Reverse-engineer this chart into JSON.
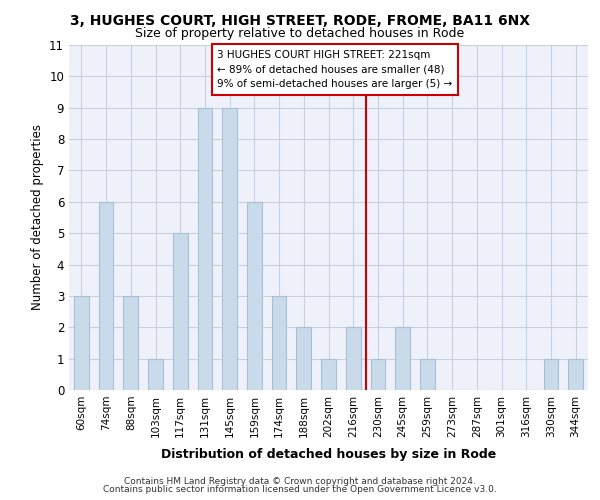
{
  "title1": "3, HUGHES COURT, HIGH STREET, RODE, FROME, BA11 6NX",
  "title2": "Size of property relative to detached houses in Rode",
  "xlabel": "Distribution of detached houses by size in Rode",
  "ylabel": "Number of detached properties",
  "categories": [
    "60sqm",
    "74sqm",
    "88sqm",
    "103sqm",
    "117sqm",
    "131sqm",
    "145sqm",
    "159sqm",
    "174sqm",
    "188sqm",
    "202sqm",
    "216sqm",
    "230sqm",
    "245sqm",
    "259sqm",
    "273sqm",
    "287sqm",
    "301sqm",
    "316sqm",
    "330sqm",
    "344sqm"
  ],
  "values": [
    3,
    6,
    3,
    1,
    5,
    9,
    9,
    6,
    3,
    2,
    1,
    2,
    1,
    2,
    1,
    0,
    0,
    0,
    0,
    1,
    1
  ],
  "bar_color": "#c9daea",
  "bar_edge_color": "#a8c0d6",
  "grid_color": "#c8cfe0",
  "background_color": "#eef1f9",
  "ref_line_index": 11.5,
  "annotation_text": "3 HUGHES COURT HIGH STREET: 221sqm\n← 89% of detached houses are smaller (48)\n9% of semi-detached houses are larger (5) →",
  "footer1": "Contains HM Land Registry data © Crown copyright and database right 2024.",
  "footer2": "Contains public sector information licensed under the Open Government Licence v3.0.",
  "ylim": [
    0,
    11
  ],
  "yticks": [
    0,
    1,
    2,
    3,
    4,
    5,
    6,
    7,
    8,
    9,
    10,
    11
  ]
}
